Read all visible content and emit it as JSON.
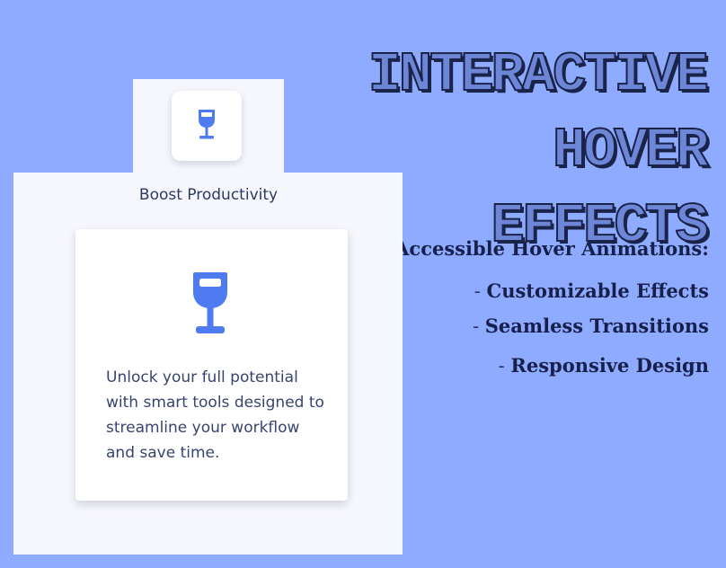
{
  "hero": {
    "line1": "INTERACTIVE HOVER",
    "line2": "EFFECTS"
  },
  "features": {
    "items": [
      {
        "dash": "- ",
        "label": "Accessible Hover Animations:"
      },
      {
        "dash": "- ",
        "label": "Customizable Effects"
      },
      {
        "dash": "- ",
        "label": "Seamless Transitions"
      },
      {
        "dash": "- ",
        "label": "Responsive Design"
      }
    ]
  },
  "panel": {
    "tab_icon": "wine-glass-icon",
    "label": "Boost Productivity"
  },
  "card": {
    "icon": "wine-glass-icon",
    "text": "Unlock your full potential with smart tools designed to streamline your workflow and save time."
  },
  "colors": {
    "background": "#8eabff",
    "panel": "#f6f7fc",
    "accent": "#4f7bf0",
    "heading": "#17204a"
  }
}
